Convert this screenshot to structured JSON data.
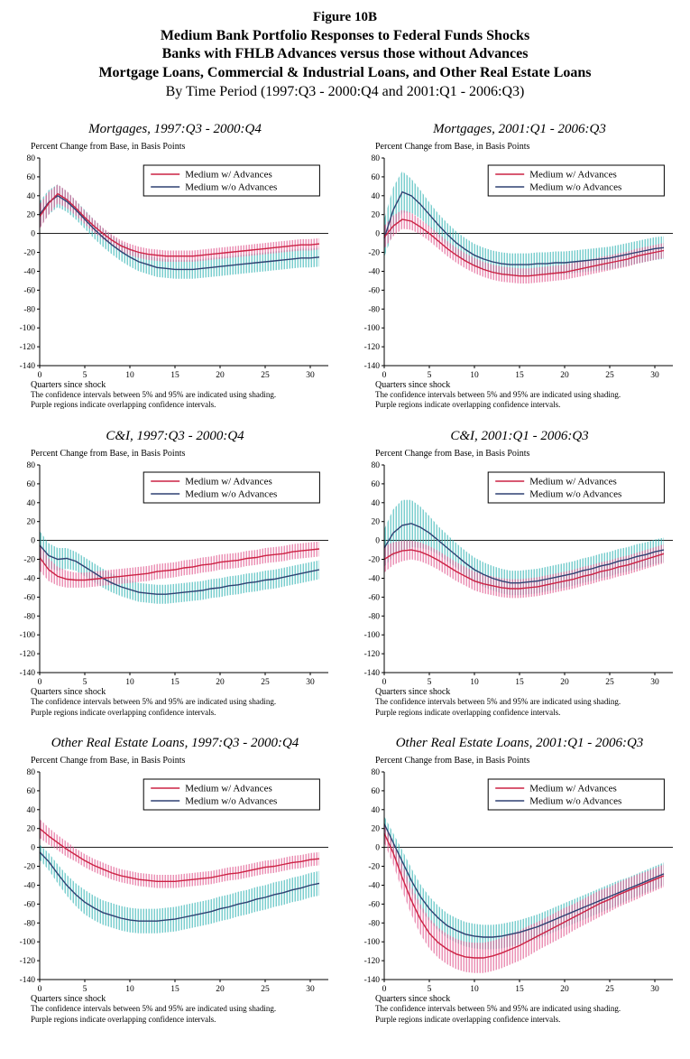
{
  "title_block": {
    "line1": "Figure 10B",
    "line2": "Medium Bank Portfolio Responses to Federal Funds Shocks",
    "line3": "Banks with FHLB Advances versus those without Advances",
    "line4": "Mortgage Loans, Commercial & Industrial Loans, and Other Real Estate Loans",
    "line5": "By Time Period (1997:Q3 - 2000:Q4 and 2001:Q1 - 2006:Q3)"
  },
  "panel_common": {
    "y_axis_label": "Percent Change from Base, in Basis Points",
    "x_axis_label": "Quarters since shock",
    "footnote1": "The confidence intervals between 5% and 95% are indicated using shading.",
    "footnote2": "Purple regions indicate overlapping confidence intervals.",
    "ylim": [
      -140,
      80
    ],
    "ytick_step": 20,
    "xlim": [
      0,
      32
    ],
    "xticks": [
      0,
      5,
      10,
      15,
      20,
      25,
      30
    ]
  },
  "chart_data": [
    {
      "type": "line",
      "title": "Mortgages, 1997:Q3 - 2000:Q4",
      "x_start": 0,
      "series": [
        {
          "name": "Medium w/ Advances",
          "color": "#cc2244",
          "band_color": "#e0558c",
          "values": [
            18,
            32,
            42,
            36,
            27,
            17,
            8,
            0,
            -7,
            -13,
            -17,
            -20,
            -22,
            -23,
            -24,
            -24,
            -24,
            -24,
            -23,
            -22,
            -21,
            -20,
            -19,
            -18,
            -17,
            -16,
            -15,
            -14,
            -13,
            -12,
            -12,
            -11
          ],
          "band": [
            13,
            12,
            10,
            9,
            8,
            7,
            7,
            6,
            6,
            6,
            6,
            6,
            6,
            6,
            6,
            6,
            6,
            6,
            6,
            6,
            6,
            6,
            6,
            6,
            6,
            6,
            6,
            6,
            6,
            6,
            6,
            6
          ]
        },
        {
          "name": "Medium w/o Advances",
          "color": "#2e4172",
          "band_color": "#2fb3b3",
          "values": [
            20,
            33,
            40,
            34,
            25,
            15,
            5,
            -4,
            -12,
            -19,
            -25,
            -30,
            -33,
            -36,
            -37,
            -38,
            -38,
            -38,
            -37,
            -36,
            -35,
            -34,
            -33,
            -32,
            -31,
            -30,
            -29,
            -28,
            -27,
            -26,
            -26,
            -25
          ],
          "band": [
            14,
            13,
            12,
            11,
            10,
            10,
            10,
            10,
            10,
            10,
            10,
            10,
            10,
            10,
            10,
            10,
            10,
            10,
            10,
            10,
            10,
            10,
            10,
            10,
            10,
            10,
            10,
            10,
            10,
            10,
            10,
            10
          ]
        }
      ]
    },
    {
      "type": "line",
      "title": "Mortgages, 2001:Q1 - 2006:Q3",
      "x_start": 0,
      "series": [
        {
          "name": "Medium w/ Advances",
          "color": "#cc2244",
          "band_color": "#e0558c",
          "values": [
            -4,
            8,
            15,
            13,
            7,
            0,
            -8,
            -16,
            -23,
            -29,
            -34,
            -38,
            -41,
            -43,
            -44,
            -45,
            -45,
            -44,
            -43,
            -42,
            -41,
            -39,
            -37,
            -35,
            -33,
            -31,
            -29,
            -27,
            -24,
            -22,
            -20,
            -18
          ],
          "band": [
            12,
            11,
            10,
            9,
            8,
            8,
            8,
            8,
            8,
            8,
            8,
            8,
            8,
            8,
            8,
            8,
            8,
            8,
            8,
            8,
            8,
            8,
            8,
            8,
            8,
            8,
            8,
            8,
            8,
            8,
            8,
            8
          ]
        },
        {
          "name": "Medium w/o Advances",
          "color": "#2e4172",
          "band_color": "#2fb3b3",
          "values": [
            -5,
            25,
            44,
            40,
            31,
            20,
            9,
            -1,
            -10,
            -17,
            -23,
            -27,
            -30,
            -32,
            -33,
            -33,
            -33,
            -32,
            -32,
            -31,
            -31,
            -30,
            -29,
            -28,
            -27,
            -26,
            -24,
            -22,
            -20,
            -18,
            -16,
            -15
          ],
          "band": [
            20,
            24,
            22,
            18,
            15,
            13,
            12,
            12,
            12,
            12,
            12,
            12,
            12,
            12,
            12,
            12,
            12,
            12,
            12,
            12,
            12,
            12,
            12,
            12,
            12,
            12,
            12,
            12,
            12,
            12,
            12,
            12
          ]
        }
      ]
    },
    {
      "type": "line",
      "title": "C&I, 1997:Q3 - 2000:Q4",
      "x_start": 0,
      "series": [
        {
          "name": "Medium w/ Advances",
          "color": "#cc2244",
          "band_color": "#e0558c",
          "values": [
            -18,
            -31,
            -38,
            -41,
            -42,
            -42,
            -41,
            -40,
            -39,
            -38,
            -37,
            -36,
            -35,
            -33,
            -32,
            -31,
            -29,
            -28,
            -26,
            -25,
            -23,
            -22,
            -21,
            -19,
            -18,
            -16,
            -15,
            -14,
            -12,
            -11,
            -10,
            -9
          ],
          "band": [
            14,
            12,
            10,
            9,
            8,
            8,
            8,
            8,
            8,
            8,
            8,
            8,
            8,
            8,
            8,
            8,
            8,
            8,
            8,
            8,
            8,
            8,
            8,
            8,
            8,
            8,
            8,
            8,
            8,
            8,
            8,
            8
          ]
        },
        {
          "name": "Medium w/o Advances",
          "color": "#2e4172",
          "band_color": "#2fb3b3",
          "values": [
            -5,
            -16,
            -20,
            -19,
            -22,
            -28,
            -34,
            -40,
            -45,
            -49,
            -52,
            -55,
            -56,
            -57,
            -57,
            -56,
            -55,
            -54,
            -53,
            -51,
            -50,
            -48,
            -47,
            -45,
            -44,
            -42,
            -41,
            -39,
            -37,
            -35,
            -33,
            -31
          ],
          "band": [
            15,
            13,
            12,
            11,
            10,
            10,
            10,
            10,
            10,
            10,
            10,
            10,
            10,
            10,
            10,
            10,
            10,
            10,
            10,
            10,
            10,
            10,
            10,
            10,
            10,
            10,
            10,
            10,
            10,
            10,
            10,
            10
          ]
        }
      ]
    },
    {
      "type": "line",
      "title": "C&I, 2001:Q1 - 2006:Q3",
      "x_start": 0,
      "series": [
        {
          "name": "Medium w/ Advances",
          "color": "#cc2244",
          "band_color": "#e0558c",
          "values": [
            -20,
            -14,
            -11,
            -10,
            -12,
            -16,
            -21,
            -27,
            -33,
            -38,
            -43,
            -46,
            -48,
            -50,
            -51,
            -51,
            -50,
            -49,
            -47,
            -45,
            -43,
            -41,
            -38,
            -36,
            -33,
            -31,
            -28,
            -26,
            -23,
            -20,
            -17,
            -14
          ],
          "band": [
            14,
            12,
            11,
            10,
            10,
            10,
            10,
            10,
            10,
            10,
            10,
            10,
            10,
            10,
            10,
            10,
            10,
            10,
            10,
            10,
            10,
            10,
            10,
            10,
            10,
            10,
            10,
            10,
            10,
            10,
            10,
            10
          ]
        },
        {
          "name": "Medium w/o Advances",
          "color": "#2e4172",
          "band_color": "#2fb3b3",
          "values": [
            -8,
            8,
            16,
            18,
            14,
            8,
            0,
            -8,
            -16,
            -24,
            -31,
            -36,
            -40,
            -43,
            -45,
            -45,
            -44,
            -43,
            -41,
            -39,
            -37,
            -35,
            -32,
            -30,
            -27,
            -25,
            -22,
            -20,
            -17,
            -15,
            -12,
            -10
          ],
          "band": [
            20,
            25,
            27,
            25,
            22,
            18,
            15,
            14,
            13,
            13,
            13,
            13,
            13,
            13,
            13,
            13,
            13,
            13,
            13,
            13,
            13,
            13,
            13,
            13,
            13,
            13,
            13,
            13,
            13,
            13,
            13,
            13
          ]
        }
      ]
    },
    {
      "type": "line",
      "title": "Other Real Estate Loans, 1997:Q3 - 2000:Q4",
      "x_start": 0,
      "series": [
        {
          "name": "Medium w/ Advances",
          "color": "#cc2244",
          "band_color": "#e0558c",
          "values": [
            20,
            12,
            5,
            -2,
            -8,
            -14,
            -19,
            -23,
            -27,
            -30,
            -32,
            -34,
            -35,
            -36,
            -36,
            -36,
            -35,
            -34,
            -33,
            -32,
            -30,
            -28,
            -27,
            -25,
            -23,
            -21,
            -20,
            -18,
            -16,
            -15,
            -13,
            -12
          ],
          "band": [
            10,
            9,
            8,
            8,
            7,
            7,
            7,
            7,
            7,
            7,
            7,
            7,
            7,
            7,
            7,
            7,
            7,
            7,
            7,
            7,
            7,
            7,
            7,
            7,
            7,
            7,
            7,
            7,
            7,
            7,
            7,
            7
          ]
        },
        {
          "name": "Medium w/o Advances",
          "color": "#2e4172",
          "band_color": "#2fb3b3",
          "values": [
            -5,
            -15,
            -28,
            -40,
            -50,
            -58,
            -64,
            -69,
            -72,
            -75,
            -77,
            -78,
            -78,
            -78,
            -77,
            -76,
            -74,
            -72,
            -70,
            -68,
            -65,
            -63,
            -60,
            -58,
            -55,
            -53,
            -50,
            -48,
            -45,
            -43,
            -40,
            -38
          ],
          "band": [
            8,
            9,
            10,
            11,
            12,
            13,
            13,
            13,
            13,
            13,
            13,
            13,
            13,
            13,
            13,
            13,
            13,
            13,
            13,
            13,
            13,
            13,
            13,
            13,
            13,
            13,
            13,
            13,
            13,
            13,
            13,
            13
          ]
        }
      ]
    },
    {
      "type": "line",
      "title": "Other Real Estate Loans, 2001:Q1 - 2006:Q3",
      "x_start": 0,
      "series": [
        {
          "name": "Medium w/ Advances",
          "color": "#cc2244",
          "band_color": "#e0558c",
          "values": [
            15,
            -6,
            -32,
            -56,
            -76,
            -91,
            -101,
            -108,
            -113,
            -116,
            -117,
            -117,
            -115,
            -112,
            -108,
            -104,
            -99,
            -94,
            -89,
            -84,
            -79,
            -74,
            -69,
            -64,
            -59,
            -55,
            -50,
            -46,
            -42,
            -38,
            -34,
            -30
          ],
          "band": [
            10,
            12,
            14,
            15,
            16,
            16,
            16,
            16,
            16,
            16,
            16,
            16,
            16,
            16,
            16,
            16,
            16,
            15,
            15,
            15,
            15,
            14,
            14,
            14,
            14,
            13,
            13,
            13,
            13,
            12,
            12,
            12
          ]
        },
        {
          "name": "Medium w/o Advances",
          "color": "#2e4172",
          "band_color": "#2fb3b3",
          "values": [
            25,
            5,
            -15,
            -35,
            -52,
            -65,
            -75,
            -83,
            -88,
            -92,
            -94,
            -95,
            -95,
            -94,
            -92,
            -90,
            -87,
            -84,
            -80,
            -76,
            -72,
            -68,
            -64,
            -60,
            -56,
            -52,
            -48,
            -44,
            -40,
            -36,
            -32,
            -28
          ],
          "band": [
            8,
            10,
            12,
            13,
            13,
            13,
            13,
            13,
            13,
            13,
            13,
            13,
            13,
            13,
            13,
            13,
            13,
            13,
            13,
            13,
            13,
            13,
            13,
            13,
            13,
            13,
            13,
            12,
            12,
            12,
            12,
            12
          ]
        }
      ]
    }
  ]
}
